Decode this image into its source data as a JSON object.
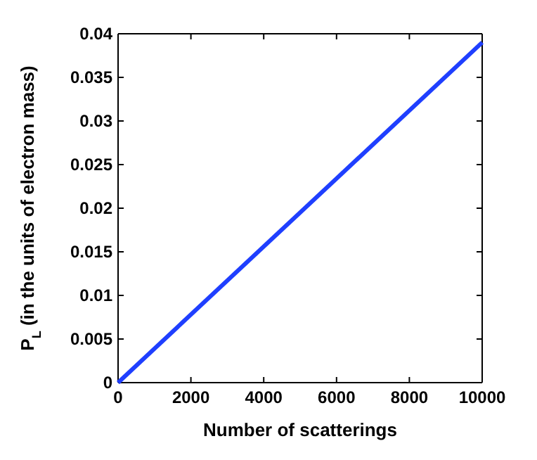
{
  "chart_data": {
    "type": "line",
    "xlabel": "Number of scatterings",
    "ylabel": "P$_{L}$ (in the units of electron mass)",
    "x": [
      0,
      10000
    ],
    "series": [
      {
        "color": "#1f3fff",
        "values": [
          0,
          0.039
        ]
      }
    ],
    "xlim": [
      0,
      10000
    ],
    "xticks": [
      0,
      2000,
      4000,
      6000,
      8000,
      10000
    ],
    "ylim": [
      0,
      0.04
    ],
    "yticks": [
      0,
      0.005,
      0.01,
      0.015,
      0.02,
      0.025,
      0.03,
      0.035,
      0.04
    ],
    "grid": false,
    "marker": "none",
    "line_style": "solid"
  }
}
